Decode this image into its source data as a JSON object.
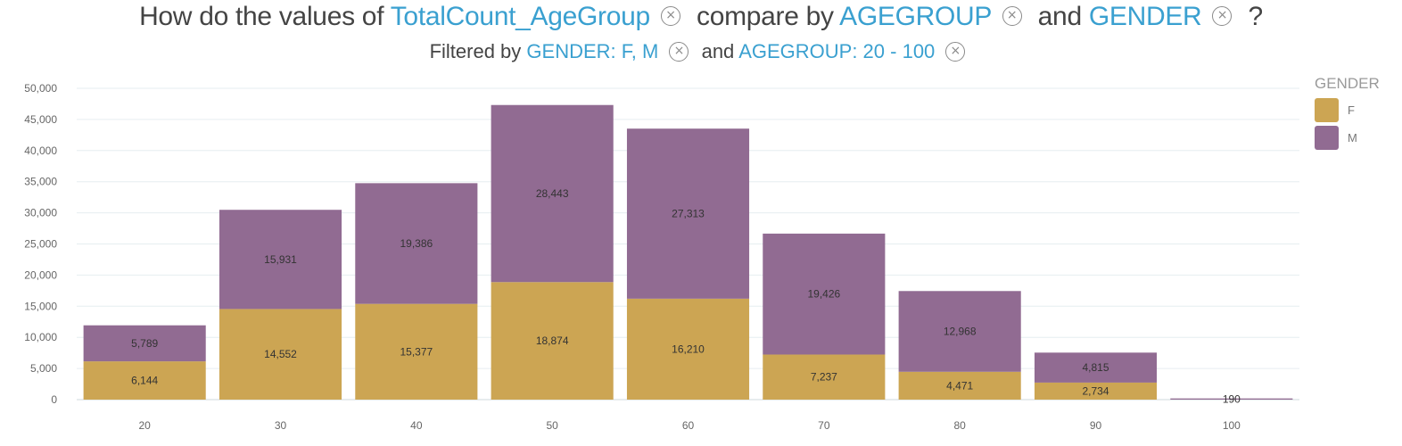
{
  "title": {
    "prefix": "How do the values of",
    "measure": "TotalCount_AgeGroup",
    "middle": "compare by",
    "dim1": "AGEGROUP",
    "and": "and",
    "dim2": "GENDER",
    "suffix": "?",
    "remove_icon": "×"
  },
  "subtitle": {
    "prefix": "Filtered by",
    "filter1": "GENDER: F, M",
    "and": "and",
    "filter2": "AGEGROUP: 20 - 100",
    "remove_icon": "×"
  },
  "legend": {
    "title": "GENDER",
    "items": [
      {
        "label": "F",
        "color": "#cca553"
      },
      {
        "label": "M",
        "color": "#916b92"
      }
    ]
  },
  "chart_data": {
    "type": "bar",
    "stacked": true,
    "categories": [
      "20",
      "30",
      "40",
      "50",
      "60",
      "70",
      "80",
      "90",
      "100"
    ],
    "series": [
      {
        "name": "F",
        "color": "#cca553",
        "values": [
          6144,
          14552,
          15377,
          18874,
          16210,
          7237,
          4471,
          2734,
          0
        ]
      },
      {
        "name": "M",
        "color": "#916b92",
        "values": [
          5789,
          15931,
          19386,
          28443,
          27313,
          19426,
          12968,
          4815,
          190
        ]
      }
    ],
    "data_labels": {
      "F": [
        "6,144",
        "14,552",
        "15,377",
        "18,874",
        "16,210",
        "7,237",
        "4,471",
        "2,734",
        ""
      ],
      "M": [
        "5,789",
        "15,931",
        "19,386",
        "28,443",
        "27,313",
        "19,426",
        "12,968",
        "4,815",
        "190"
      ]
    },
    "yticks": [
      "0",
      "5,000",
      "10,000",
      "15,000",
      "20,000",
      "25,000",
      "30,000",
      "35,000",
      "40,000",
      "45,000",
      "50,000"
    ],
    "ylim": [
      0,
      50000
    ],
    "grid": true,
    "legend_position": "top-right"
  }
}
